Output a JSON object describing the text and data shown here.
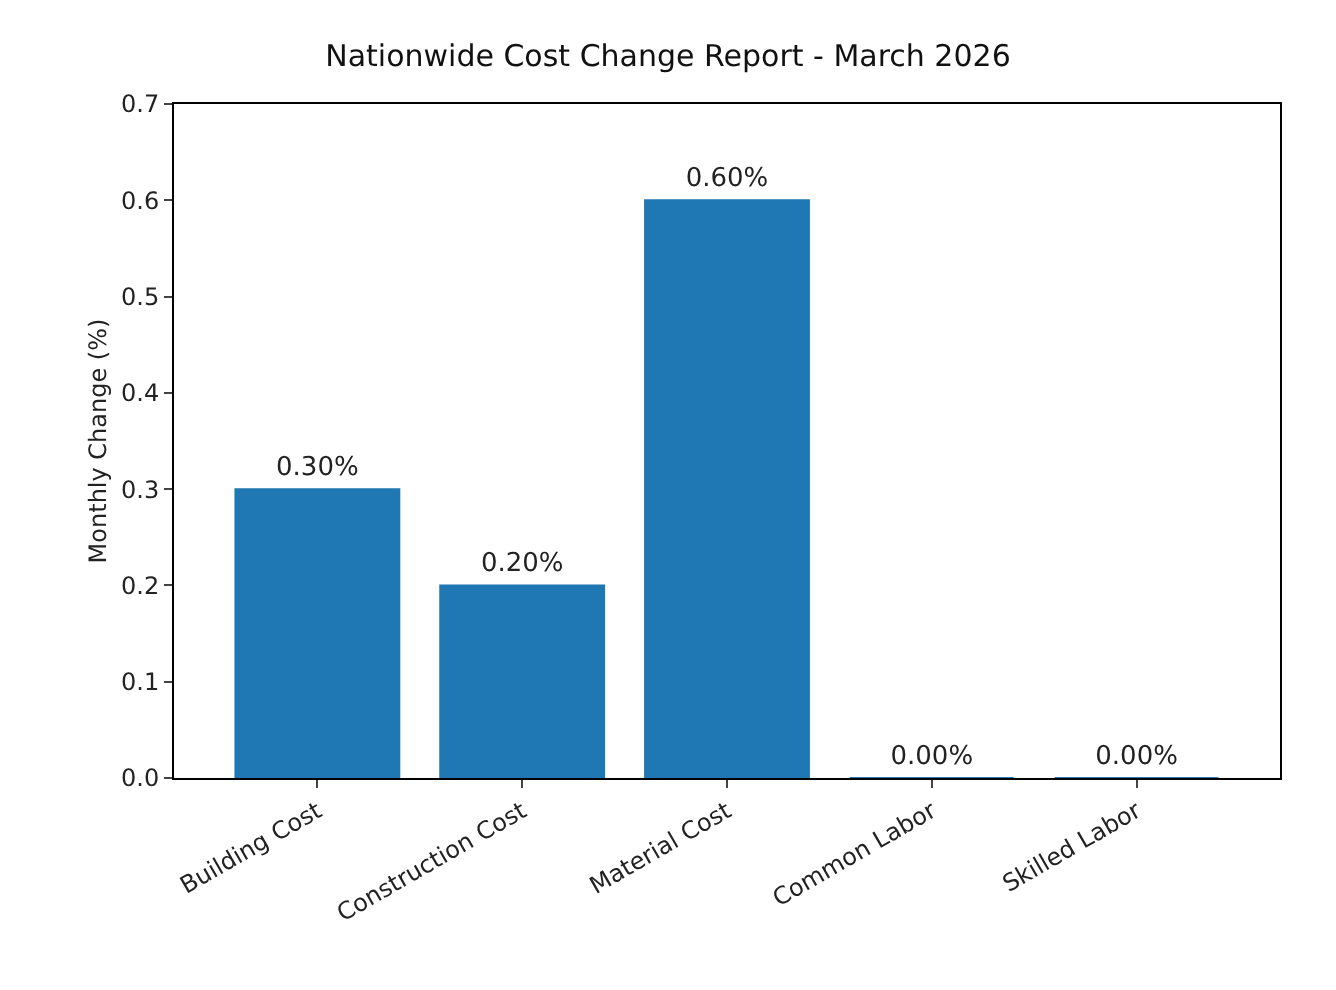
{
  "chart_data": {
    "type": "bar",
    "title": "Nationwide Cost Change Report - March 2026",
    "ylabel": "Monthly Change (%)",
    "categories": [
      "Building Cost",
      "Construction Cost",
      "Material Cost",
      "Common Labor",
      "Skilled Labor"
    ],
    "values": [
      0.3,
      0.2,
      0.6,
      0.0,
      0.0
    ],
    "value_labels": [
      "0.30%",
      "0.20%",
      "0.60%",
      "0.00%",
      "0.00%"
    ],
    "color": "#1f77b4",
    "ylim": [
      0,
      0.7
    ],
    "yticks": [
      {
        "value": 0,
        "label": "0.0"
      },
      0.1,
      0.2,
      0.3,
      0.4,
      0.5,
      0.6,
      0.7
    ],
    "grid": false
  }
}
